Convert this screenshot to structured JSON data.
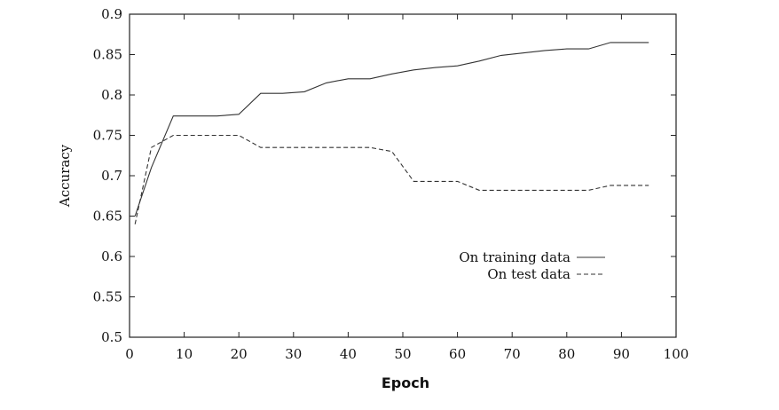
{
  "chart_data": {
    "type": "line",
    "title": "",
    "xlabel": "Epoch",
    "ylabel": "Accuracy",
    "xlim": [
      0,
      100
    ],
    "ylim": [
      0.5,
      0.9
    ],
    "xticks": [
      0,
      10,
      20,
      30,
      40,
      50,
      60,
      70,
      80,
      90,
      100
    ],
    "yticks": [
      0.5,
      0.55,
      0.6,
      0.65,
      0.7,
      0.75,
      0.8,
      0.85,
      0.9
    ],
    "xtick_labels": [
      "0",
      "10",
      "20",
      "30",
      "40",
      "50",
      "60",
      "70",
      "80",
      "90",
      "100"
    ],
    "ytick_labels": [
      "0.5",
      "0.55",
      "0.6",
      "0.65",
      "0.7",
      "0.75",
      "0.8",
      "0.85",
      "0.9"
    ],
    "grid": false,
    "legend_position": "right-center",
    "series": [
      {
        "name": "On training data",
        "style": "solid",
        "color": "#333333",
        "x": [
          1,
          4,
          8,
          12,
          16,
          20,
          24,
          28,
          32,
          36,
          40,
          44,
          48,
          52,
          56,
          60,
          64,
          68,
          72,
          76,
          80,
          84,
          88,
          92,
          95
        ],
        "y": [
          0.65,
          0.71,
          0.774,
          0.774,
          0.774,
          0.776,
          0.802,
          0.802,
          0.804,
          0.815,
          0.82,
          0.82,
          0.826,
          0.831,
          0.834,
          0.836,
          0.842,
          0.849,
          0.852,
          0.855,
          0.857,
          0.857,
          0.865,
          0.865,
          0.865
        ]
      },
      {
        "name": "On test data",
        "style": "dashed",
        "color": "#333333",
        "x": [
          1,
          4,
          8,
          12,
          16,
          20,
          24,
          28,
          32,
          36,
          40,
          44,
          48,
          52,
          56,
          60,
          64,
          68,
          72,
          76,
          80,
          84,
          88,
          92,
          95
        ],
        "y": [
          0.64,
          0.735,
          0.75,
          0.75,
          0.75,
          0.75,
          0.735,
          0.735,
          0.735,
          0.735,
          0.735,
          0.735,
          0.73,
          0.693,
          0.693,
          0.693,
          0.682,
          0.682,
          0.682,
          0.682,
          0.682,
          0.682,
          0.688,
          0.688,
          0.688
        ]
      }
    ]
  }
}
